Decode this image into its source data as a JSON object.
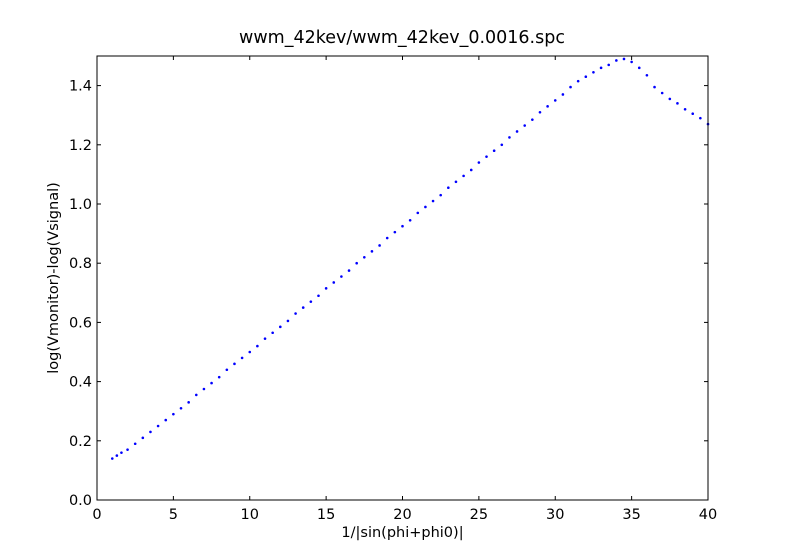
{
  "chart_data": {
    "type": "scatter",
    "title": "wwm_42kev/wwm_42kev_0.0016.spc",
    "xlabel": "1/|sin(phi+phi0)|",
    "ylabel": "log(Vmonitor)-log(Vsignal)",
    "xlim": [
      0,
      40
    ],
    "ylim": [
      0,
      1.5
    ],
    "x_ticks": [
      0,
      5,
      10,
      15,
      20,
      25,
      30,
      35,
      40
    ],
    "x_tick_labels": [
      "0",
      "5",
      "10",
      "15",
      "20",
      "25",
      "30",
      "35",
      "40"
    ],
    "y_ticks": [
      0.0,
      0.2,
      0.4,
      0.6,
      0.8,
      1.0,
      1.2,
      1.4
    ],
    "y_tick_labels": [
      "0.0",
      "0.2",
      "0.4",
      "0.6",
      "0.8",
      "1.0",
      "1.2",
      "1.4"
    ],
    "grid": false,
    "legend": "none",
    "marker_color": "#0000ff",
    "series": [
      {
        "x": [
          1.0,
          1.3,
          1.6,
          2.0,
          2.5,
          3.0,
          3.5,
          4.0,
          4.5,
          5.0,
          5.5,
          6.0,
          6.5,
          7.0,
          7.5,
          8.0,
          8.5,
          9.0,
          9.5,
          10.0,
          10.5,
          11.0,
          11.5,
          12.0,
          12.5,
          13.0,
          13.5,
          14.0,
          14.5,
          15.0,
          15.5,
          16.0,
          16.5,
          17.0,
          17.5,
          18.0,
          18.5,
          19.0,
          19.5,
          20.0,
          20.5,
          21.0,
          21.5,
          22.0,
          22.5,
          23.0,
          23.5,
          24.0,
          24.5,
          25.0,
          25.5,
          26.0,
          26.5,
          27.0,
          27.5,
          28.0,
          28.5,
          29.0,
          29.5,
          30.0,
          30.5,
          31.0,
          31.5,
          32.0,
          32.5,
          33.0,
          33.5,
          34.0,
          34.5,
          35.0,
          35.5,
          36.0,
          36.5,
          37.0,
          37.5,
          38.0,
          38.5,
          39.0,
          39.5,
          40.0
        ],
        "y": [
          0.14,
          0.15,
          0.16,
          0.17,
          0.19,
          0.21,
          0.23,
          0.25,
          0.27,
          0.29,
          0.31,
          0.33,
          0.355,
          0.375,
          0.395,
          0.415,
          0.44,
          0.46,
          0.48,
          0.5,
          0.52,
          0.545,
          0.565,
          0.585,
          0.605,
          0.63,
          0.65,
          0.67,
          0.69,
          0.715,
          0.735,
          0.755,
          0.775,
          0.8,
          0.82,
          0.84,
          0.86,
          0.885,
          0.905,
          0.925,
          0.945,
          0.97,
          0.99,
          1.01,
          1.03,
          1.055,
          1.075,
          1.095,
          1.115,
          1.14,
          1.16,
          1.18,
          1.2,
          1.225,
          1.245,
          1.265,
          1.285,
          1.31,
          1.33,
          1.35,
          1.37,
          1.395,
          1.415,
          1.43,
          1.445,
          1.46,
          1.47,
          1.485,
          1.49,
          1.48,
          1.46,
          1.435,
          1.395,
          1.375,
          1.355,
          1.34,
          1.32,
          1.305,
          1.29,
          1.27
        ]
      }
    ]
  }
}
